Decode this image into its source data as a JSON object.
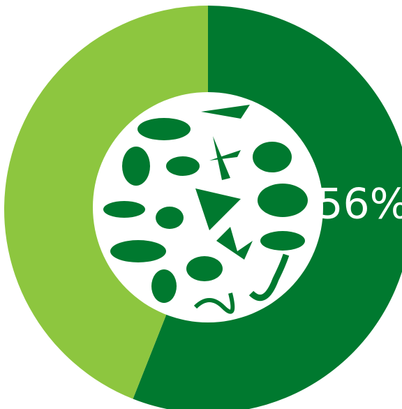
{
  "chart_data": {
    "type": "donut",
    "values": [
      56,
      44
    ],
    "value_labels": [
      "56%",
      null
    ],
    "colors": [
      "#00792f",
      "#8dc63f"
    ]
  }
}
